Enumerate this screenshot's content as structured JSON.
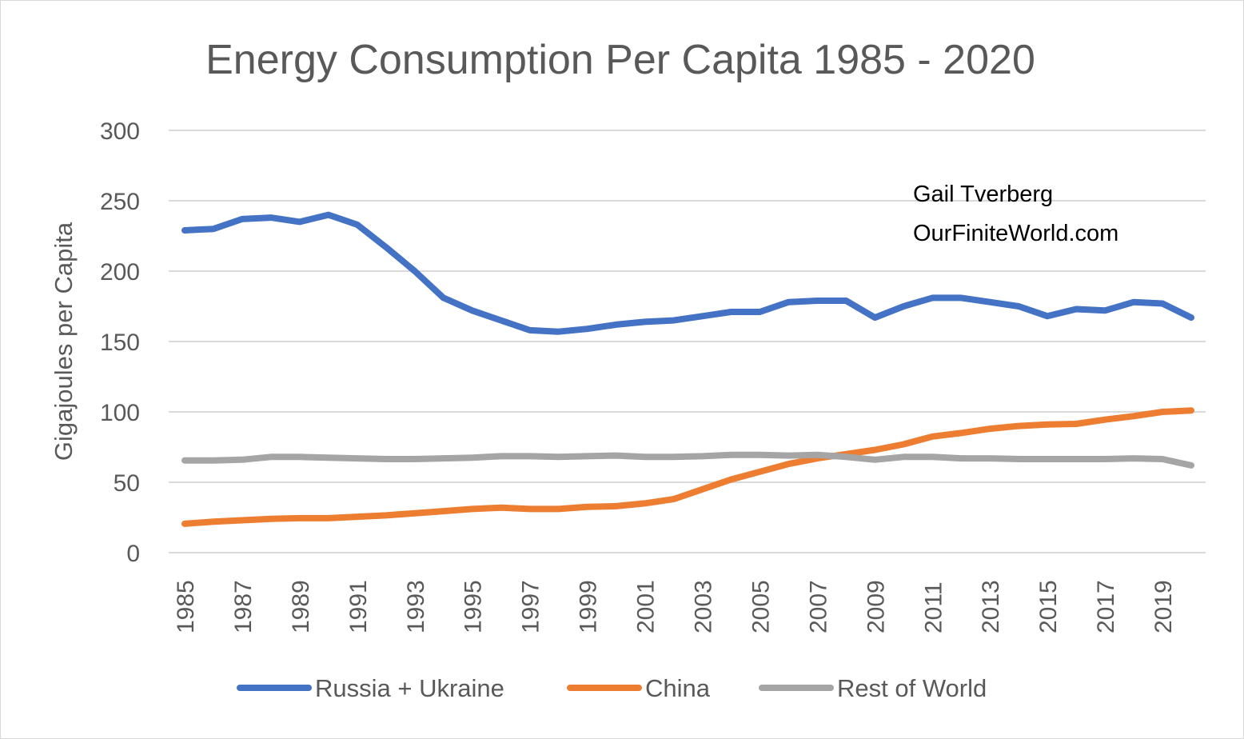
{
  "chart_data": {
    "type": "line",
    "title": "Energy Consumption Per Capita 1985 - 2020",
    "xlabel": "",
    "ylabel": "Gigajoules per Capita",
    "ylim": [
      0,
      300
    ],
    "yticks": [
      0,
      50,
      100,
      150,
      200,
      250,
      300
    ],
    "grid": true,
    "legend_position": "bottom",
    "x": [
      1985,
      1986,
      1987,
      1988,
      1989,
      1990,
      1991,
      1992,
      1993,
      1994,
      1995,
      1996,
      1997,
      1998,
      1999,
      2000,
      2001,
      2002,
      2003,
      2004,
      2005,
      2006,
      2007,
      2008,
      2009,
      2010,
      2011,
      2012,
      2013,
      2014,
      2015,
      2016,
      2017,
      2018,
      2019,
      2020
    ],
    "xtick_labels": [
      "1985",
      "1987",
      "1989",
      "1991",
      "1993",
      "1995",
      "1997",
      "1999",
      "2001",
      "2003",
      "2005",
      "2007",
      "2009",
      "2011",
      "2013",
      "2015",
      "2017",
      "2019"
    ],
    "series": [
      {
        "name": "Russia + Ukraine",
        "color": "#4472c4",
        "values": [
          229,
          230,
          237,
          238,
          235,
          240,
          233,
          217,
          200,
          181,
          172,
          165,
          158,
          157,
          159,
          162,
          164,
          165,
          168,
          171,
          171,
          178,
          179,
          179,
          167,
          175,
          181,
          181,
          178,
          175,
          168,
          173,
          172,
          178,
          177,
          167
        ]
      },
      {
        "name": "China",
        "color": "#ed7d31",
        "values": [
          20.5,
          22,
          23,
          24,
          24.5,
          24.5,
          25.5,
          26.5,
          28,
          29.5,
          31,
          32,
          31,
          31,
          32.5,
          33,
          35,
          38,
          45,
          52,
          57.5,
          63,
          67,
          70,
          73,
          77,
          82.5,
          85,
          88,
          90,
          91,
          91.5,
          94.5,
          97,
          100,
          101
        ]
      },
      {
        "name": "Rest of World",
        "color": "#a5a5a5",
        "values": [
          65.5,
          65.5,
          66,
          68,
          68,
          67.5,
          67,
          66.5,
          66.5,
          67,
          67.5,
          68.5,
          68.5,
          68,
          68.5,
          69,
          68,
          68,
          68.5,
          69.5,
          69.5,
          69,
          69.5,
          68,
          66,
          68,
          68,
          67,
          67,
          66.5,
          66.5,
          66.5,
          66.5,
          67,
          66.5,
          62
        ]
      }
    ],
    "annotations": [
      "Gail Tverberg",
      "OurFiniteWorld.com"
    ]
  }
}
